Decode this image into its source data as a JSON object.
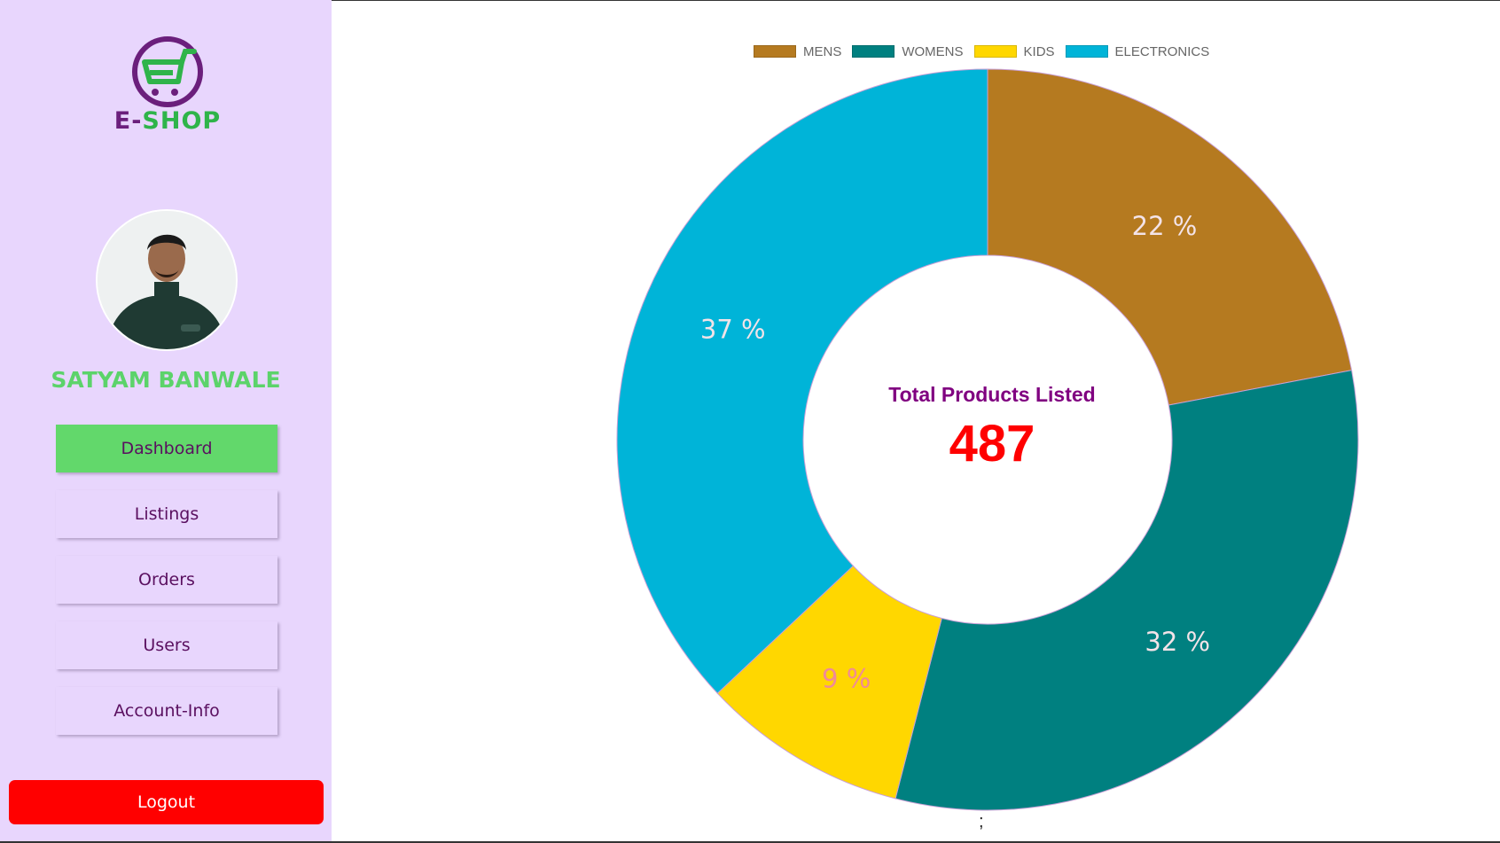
{
  "brand": {
    "name_prefix": "E-",
    "name_suffix": "SHOP",
    "logo_icon": "cart-logo-icon"
  },
  "user": {
    "name": "SATYAM BANWALE",
    "avatar_icon": "user-avatar-photo"
  },
  "nav": {
    "items": [
      {
        "label": "Dashboard",
        "active": true
      },
      {
        "label": "Listings",
        "active": false
      },
      {
        "label": "Orders",
        "active": false
      },
      {
        "label": "Users",
        "active": false
      },
      {
        "label": "Account-Info",
        "active": false
      }
    ],
    "logout_label": "Logout"
  },
  "colors": {
    "sidebar_bg": "#e8d6fd",
    "active_nav": "#62d86b",
    "logout": "#ff0000",
    "user_name": "#5cd36a"
  },
  "dashboard": {
    "center_title": "Total Products Listed",
    "center_value": "487",
    "footer_text": ";"
  },
  "chart_data": {
    "type": "doughnut",
    "categories": [
      "MENS",
      "WOMENS",
      "KIDS",
      "ELECTRONICS"
    ],
    "values": [
      22,
      32,
      9,
      37
    ],
    "value_labels": [
      "22 %",
      "32 %",
      "9 %",
      "37 %"
    ],
    "colors": [
      "#b57a20",
      "#008080",
      "#ffd700",
      "#00b4d8"
    ],
    "label_colors": [
      "#f3e3e8",
      "#f3e3e8",
      "#f08a98",
      "#f3e3e8"
    ],
    "legend_position": "top"
  }
}
